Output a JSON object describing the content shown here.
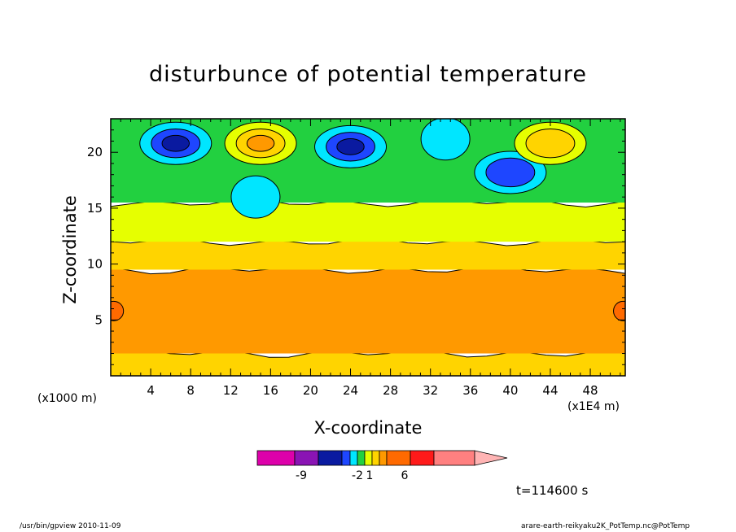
{
  "header": {
    "title": "disturbunce of potential temperature"
  },
  "footer": {
    "time_label": "t=114600 s",
    "program": "/usr/bin/gpview  2010-11-09",
    "source": "arare-earth-reikyaku2K_PotTemp.nc@PotTemp"
  },
  "colors": {
    "level_m9": "#dd00aa",
    "level_m7": "#8a14b4",
    "level_m3": "#0a1aa0",
    "level_m2": "#1e46ff",
    "level_m1": "#00e6ff",
    "level_0": "#22d040",
    "level_05": "#e6ff00",
    "level_1": "#ffd400",
    "level_2": "#ff9900",
    "level_3": "#ff6a00",
    "level_6": "#ff1a1a",
    "level_9": "#ff8080",
    "level_over": "#ffb4b4"
  },
  "chart_data": {
    "type": "heatmap",
    "title": "disturbunce of potential temperature",
    "xlabel": "X-coordinate",
    "ylabel": "Z-coordinate",
    "x_unit": "(x1E4 m)",
    "z_unit": "(x1000 m)",
    "xlim": [
      0,
      51.5
    ],
    "zlim": [
      0,
      23
    ],
    "x_ticks": [
      4,
      8,
      12,
      16,
      20,
      24,
      28,
      32,
      36,
      40,
      44,
      48
    ],
    "z_ticks": [
      5,
      10,
      15,
      20
    ],
    "colorbar_labels": [
      "-9",
      "-2",
      "1",
      "6"
    ],
    "layers": [
      {
        "name": "surface layer",
        "z_bottom": 0,
        "z_top": 2.0,
        "color_key": "level_1"
      },
      {
        "name": "lower orange band",
        "z_bottom": 2.0,
        "z_top": 9.5,
        "color_key": "level_2"
      },
      {
        "name": "upper orange band",
        "z_bottom": 9.5,
        "z_top": 12.0,
        "color_key": "level_1"
      },
      {
        "name": "yellow band",
        "z_bottom": 12.0,
        "z_top": 15.5,
        "color_key": "level_05"
      },
      {
        "name": "green upper region",
        "z_bottom": 15.5,
        "z_top": 23,
        "color_key": "level_0"
      }
    ],
    "features": [
      {
        "type": "min",
        "x": 6.5,
        "z": 20.8,
        "outer": "level_m1",
        "mid": "level_m2",
        "inner": "level_m3"
      },
      {
        "type": "min",
        "x": 24,
        "z": 20.5,
        "outer": "level_m1",
        "mid": "level_m2",
        "inner": "level_m3"
      },
      {
        "type": "min",
        "x": 14.5,
        "z": 16.0,
        "outer": "level_m1"
      },
      {
        "type": "min",
        "x": 33.5,
        "z": 21.2,
        "outer": "level_m1"
      },
      {
        "type": "min",
        "x": 40,
        "z": 18.2,
        "outer": "level_m1",
        "mid": "level_m2"
      },
      {
        "type": "max",
        "x": 15,
        "z": 20.8,
        "outer": "level_05",
        "mid": "level_1",
        "inner": "level_2"
      },
      {
        "type": "max",
        "x": 44,
        "z": 20.8,
        "outer": "level_05",
        "mid": "level_1"
      },
      {
        "type": "max",
        "x": 0.3,
        "z": 5.8,
        "outer": "level_3"
      },
      {
        "type": "max",
        "x": 51.3,
        "z": 5.8,
        "outer": "level_3"
      }
    ]
  }
}
